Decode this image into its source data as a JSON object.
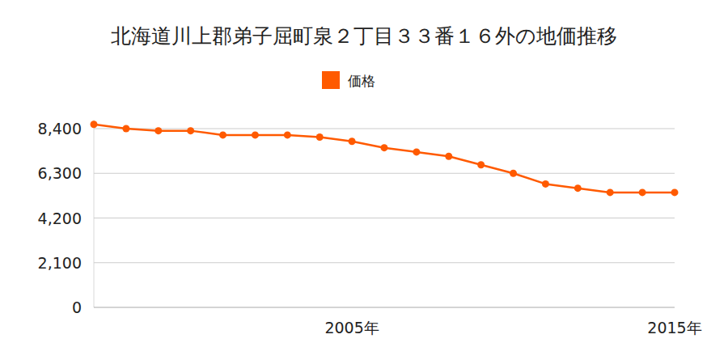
{
  "chart_data": {
    "type": "line",
    "title": "北海道川上郡弟子屈町泉２丁目３３番１６外の地価推移",
    "categories": [
      null,
      null,
      null,
      null,
      null,
      null,
      null,
      null,
      "2005年",
      null,
      null,
      null,
      null,
      null,
      null,
      null,
      null,
      null,
      "2015年"
    ],
    "series": [
      {
        "name": "価格",
        "color": "#ff5a00",
        "marker": "circle",
        "values": [
          8600,
          8400,
          8300,
          8300,
          8100,
          8100,
          8100,
          8000,
          7800,
          7500,
          7300,
          7100,
          6700,
          6300,
          5800,
          5600,
          5400,
          5400,
          5400
        ]
      }
    ],
    "ylim": [
      0,
      8800
    ],
    "yticks": [
      0,
      {
        "value": 2100,
        "label": "2,100"
      },
      {
        "value": 4200,
        "label": "4,200"
      },
      {
        "value": 6300,
        "label": "6,300"
      },
      {
        "value": 8400,
        "label": "8,400"
      }
    ],
    "grid": true,
    "legend": "top"
  }
}
